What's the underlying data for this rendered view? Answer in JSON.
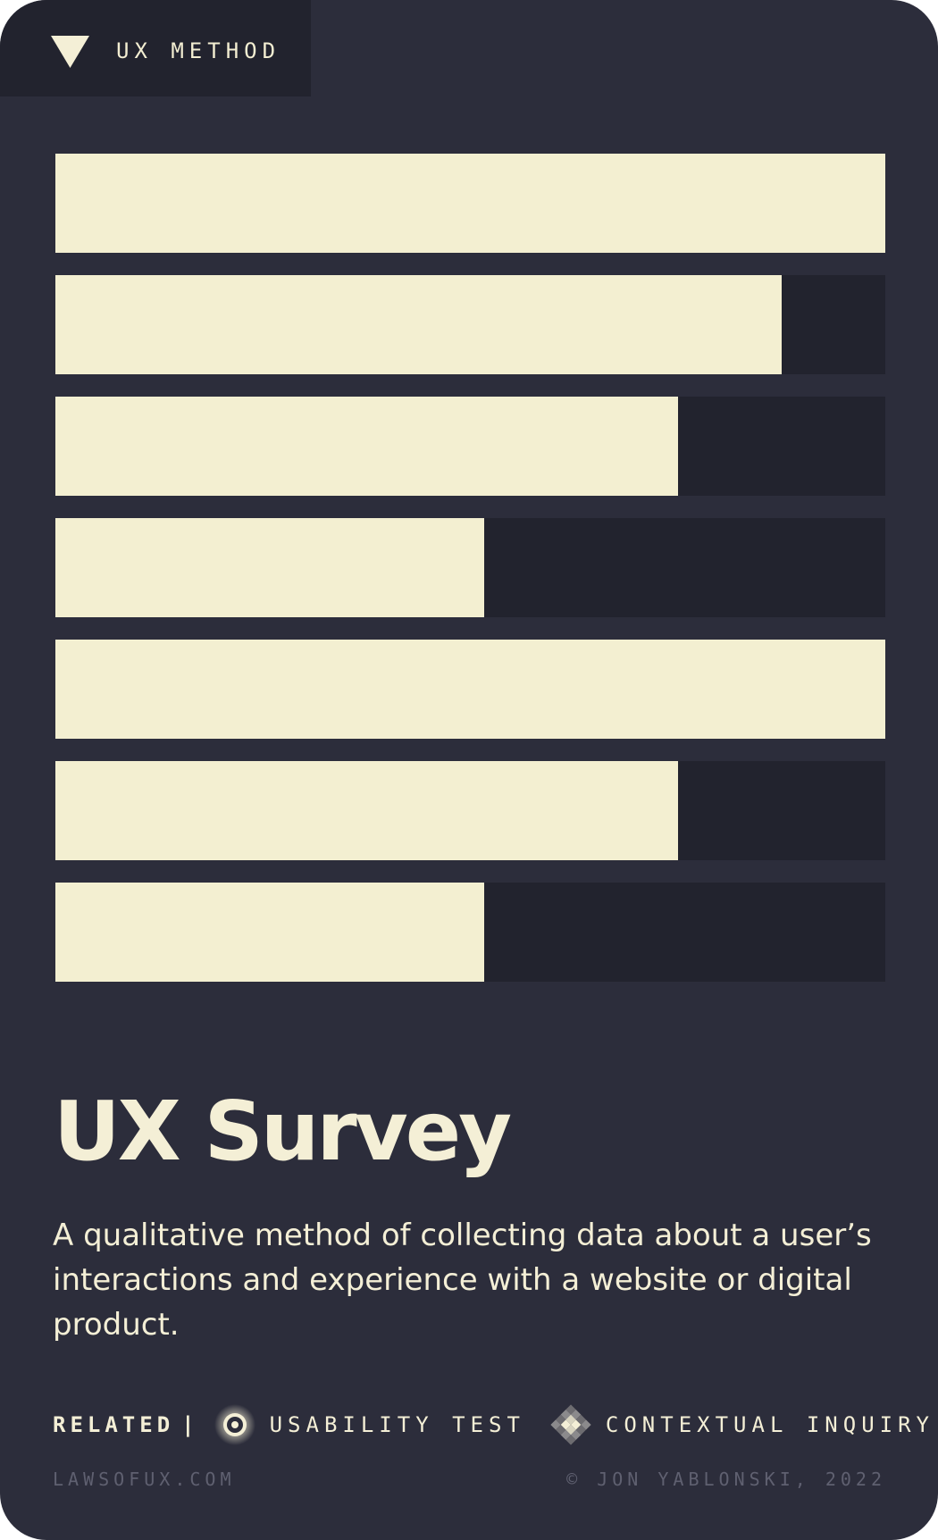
{
  "header": {
    "tag": "UX METHOD",
    "icon": "triangle-down-icon"
  },
  "bars": {
    "colors": {
      "fill": "#f3efd1",
      "track": "#22232e"
    },
    "levels": [
      1.0,
      0.875,
      0.75,
      0.517,
      1.0,
      0.75,
      0.517
    ]
  },
  "title": "UX Survey",
  "description": "A qualitative method of collecting data about a user’s interactions and experience with a website or digital product.",
  "related": {
    "label": "RELATED",
    "separator": "|",
    "items": [
      {
        "label": "USABILITY TEST",
        "icon": "usability-test-icon"
      },
      {
        "label": "CONTEXTUAL INQUIRY",
        "icon": "contextual-inquiry-icon"
      }
    ]
  },
  "footer": {
    "site": "LAWSOFUX.COM",
    "copyright": "© JON YABLONSKI, 2022"
  },
  "colors": {
    "background": "#2c2d3b",
    "text": "#f4efd6",
    "muted": "#5f6070"
  }
}
